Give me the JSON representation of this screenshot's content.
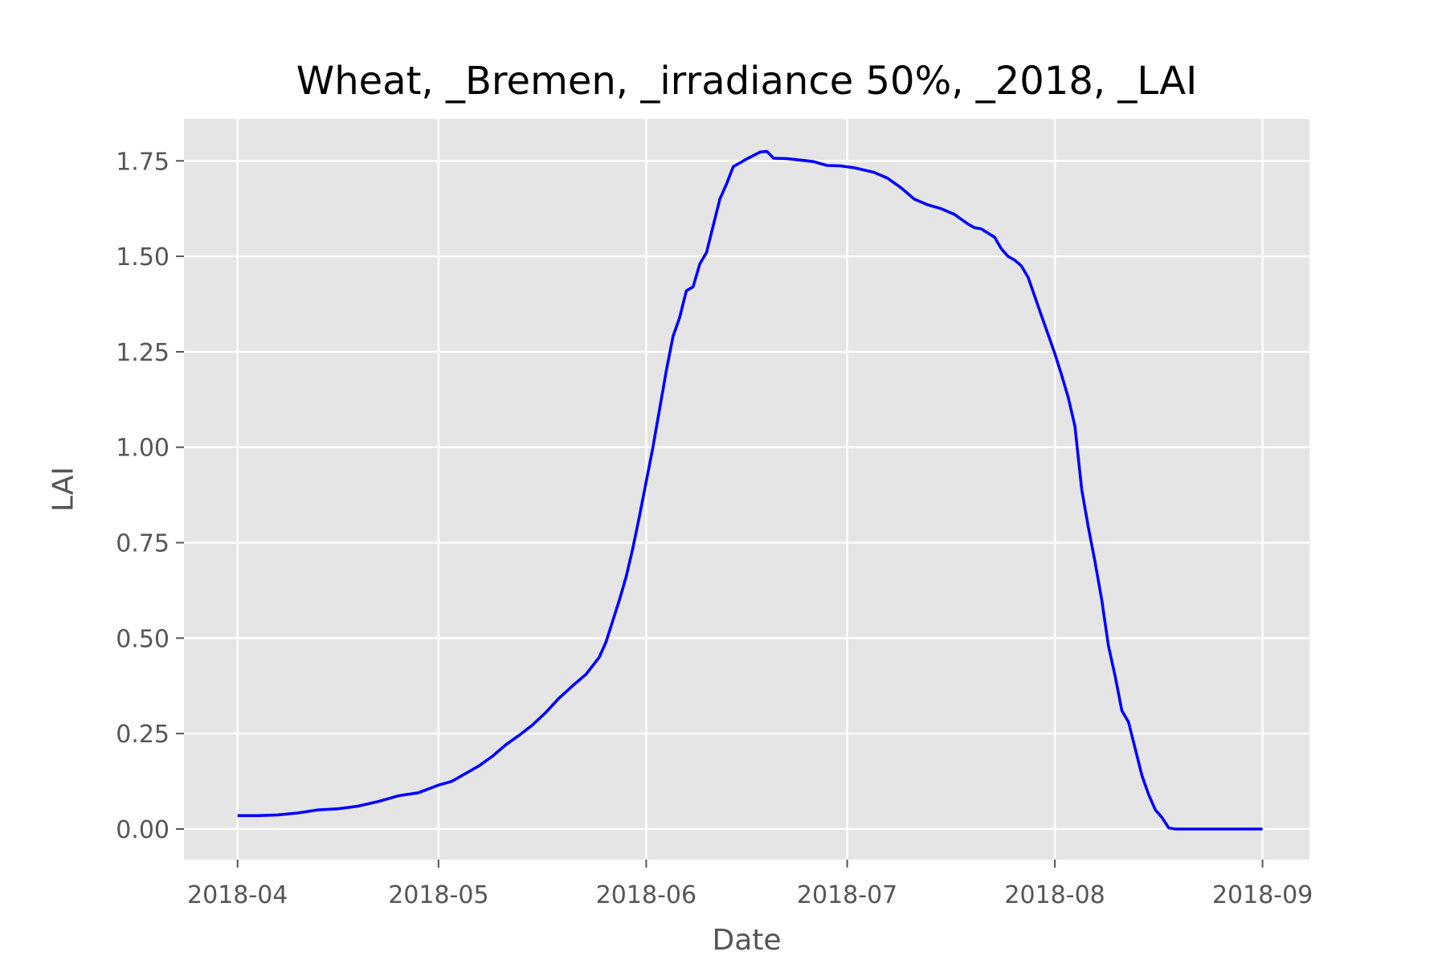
{
  "colors": {
    "plot_background": "#e5e5e5",
    "grid": "#ffffff",
    "series_line": "#0000ff",
    "tick_text": "#555555",
    "title_text": "#000000"
  },
  "chart_data": {
    "type": "line",
    "title": "Wheat, _Bremen, _irradiance 50%, _2018, _LAI",
    "xlabel": "Date",
    "ylabel": "LAI",
    "grid": true,
    "xlim": [
      "2018-03-24",
      "2018-09-08"
    ],
    "ylim": [
      -0.08,
      1.86
    ],
    "x_ticks": [
      "2018-04",
      "2018-05",
      "2018-06",
      "2018-07",
      "2018-08",
      "2018-09"
    ],
    "x_tick_dates": [
      "2018-04-01",
      "2018-05-01",
      "2018-06-01",
      "2018-07-01",
      "2018-08-01",
      "2018-09-01"
    ],
    "y_ticks": [
      0.0,
      0.25,
      0.5,
      0.75,
      1.0,
      1.25,
      1.5,
      1.75
    ],
    "y_tick_labels": [
      "0.00",
      "0.25",
      "0.50",
      "0.75",
      "1.00",
      "1.25",
      "1.50",
      "1.75"
    ],
    "series": [
      {
        "points": [
          [
            "2018-04-01",
            0.035
          ],
          [
            "2018-04-04",
            0.035
          ],
          [
            "2018-04-07",
            0.037
          ],
          [
            "2018-04-10",
            0.042
          ],
          [
            "2018-04-13",
            0.05
          ],
          [
            "2018-04-16",
            0.053
          ],
          [
            "2018-04-19",
            0.06
          ],
          [
            "2018-04-22",
            0.072
          ],
          [
            "2018-04-25",
            0.087
          ],
          [
            "2018-04-28",
            0.095
          ],
          [
            "2018-05-01",
            0.115
          ],
          [
            "2018-05-03",
            0.125
          ],
          [
            "2018-05-05",
            0.145
          ],
          [
            "2018-05-07",
            0.165
          ],
          [
            "2018-05-09",
            0.19
          ],
          [
            "2018-05-11",
            0.22
          ],
          [
            "2018-05-13",
            0.245
          ],
          [
            "2018-05-15",
            0.272
          ],
          [
            "2018-05-17",
            0.305
          ],
          [
            "2018-05-19",
            0.343
          ],
          [
            "2018-05-21",
            0.375
          ],
          [
            "2018-05-23",
            0.405
          ],
          [
            "2018-05-25",
            0.45
          ],
          [
            "2018-05-26",
            0.49
          ],
          [
            "2018-05-28",
            0.6
          ],
          [
            "2018-05-29",
            0.66
          ],
          [
            "2018-05-30",
            0.735
          ],
          [
            "2018-05-31",
            0.82
          ],
          [
            "2018-06-01",
            0.91
          ],
          [
            "2018-06-02",
            1.0
          ],
          [
            "2018-06-03",
            1.1
          ],
          [
            "2018-06-04",
            1.2
          ],
          [
            "2018-06-05",
            1.29
          ],
          [
            "2018-06-06",
            1.34
          ],
          [
            "2018-06-07",
            1.41
          ],
          [
            "2018-06-08",
            1.42
          ],
          [
            "2018-06-09",
            1.48
          ],
          [
            "2018-06-10",
            1.51
          ],
          [
            "2018-06-11",
            1.58
          ],
          [
            "2018-06-12",
            1.65
          ],
          [
            "2018-06-13",
            1.69
          ],
          [
            "2018-06-14",
            1.735
          ],
          [
            "2018-06-16",
            1.755
          ],
          [
            "2018-06-18",
            1.773
          ],
          [
            "2018-06-19",
            1.775
          ],
          [
            "2018-06-20",
            1.757
          ],
          [
            "2018-06-22",
            1.756
          ],
          [
            "2018-06-24",
            1.752
          ],
          [
            "2018-06-26",
            1.748
          ],
          [
            "2018-06-28",
            1.738
          ],
          [
            "2018-06-30",
            1.737
          ],
          [
            "2018-07-02",
            1.732
          ],
          [
            "2018-07-05",
            1.72
          ],
          [
            "2018-07-07",
            1.705
          ],
          [
            "2018-07-09",
            1.68
          ],
          [
            "2018-07-11",
            1.65
          ],
          [
            "2018-07-13",
            1.635
          ],
          [
            "2018-07-15",
            1.625
          ],
          [
            "2018-07-17",
            1.61
          ],
          [
            "2018-07-19",
            1.585
          ],
          [
            "2018-07-20",
            1.575
          ],
          [
            "2018-07-21",
            1.572
          ],
          [
            "2018-07-23",
            1.55
          ],
          [
            "2018-07-24",
            1.52
          ],
          [
            "2018-07-25",
            1.5
          ],
          [
            "2018-07-26",
            1.49
          ],
          [
            "2018-07-27",
            1.475
          ],
          [
            "2018-07-28",
            1.445
          ],
          [
            "2018-07-29",
            1.395
          ],
          [
            "2018-07-30",
            1.345
          ],
          [
            "2018-07-31",
            1.295
          ],
          [
            "2018-08-01",
            1.245
          ],
          [
            "2018-08-02",
            1.19
          ],
          [
            "2018-08-03",
            1.13
          ],
          [
            "2018-08-04",
            1.055
          ],
          [
            "2018-08-05",
            0.89
          ],
          [
            "2018-08-06",
            0.79
          ],
          [
            "2018-08-07",
            0.7
          ],
          [
            "2018-08-08",
            0.6
          ],
          [
            "2018-08-09",
            0.48
          ],
          [
            "2018-08-10",
            0.4
          ],
          [
            "2018-08-11",
            0.31
          ],
          [
            "2018-08-12",
            0.28
          ],
          [
            "2018-08-13",
            0.21
          ],
          [
            "2018-08-14",
            0.14
          ],
          [
            "2018-08-15",
            0.09
          ],
          [
            "2018-08-16",
            0.05
          ],
          [
            "2018-08-17",
            0.03
          ],
          [
            "2018-08-18",
            0.003
          ],
          [
            "2018-08-19",
            0.0
          ],
          [
            "2018-08-25",
            0.0
          ],
          [
            "2018-09-01",
            0.0
          ]
        ]
      }
    ]
  }
}
